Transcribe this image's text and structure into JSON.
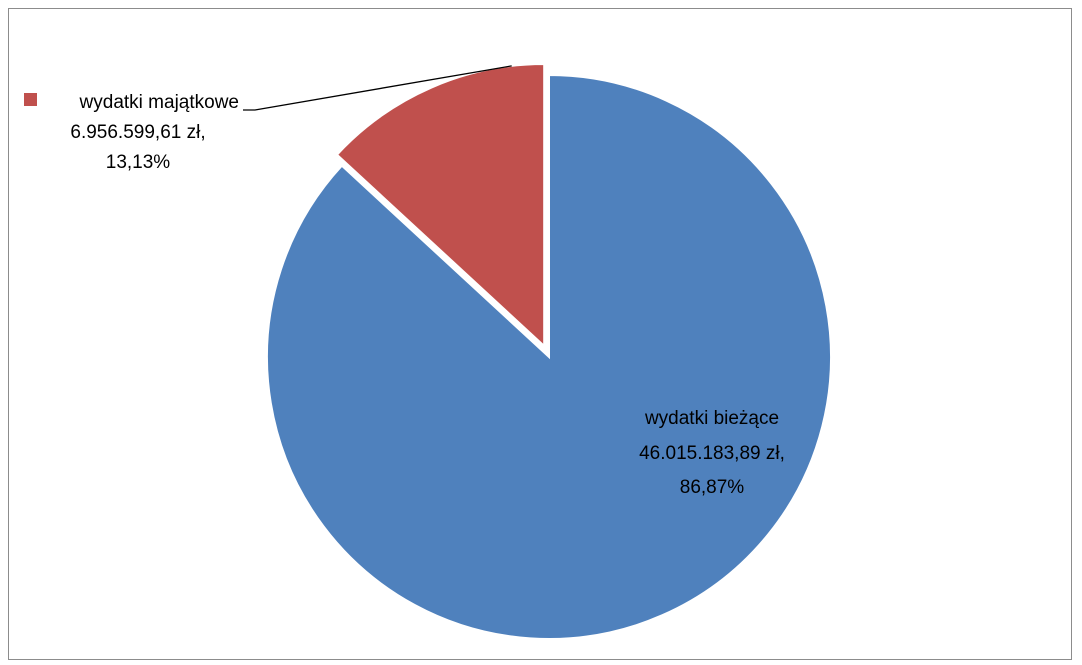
{
  "chart_data": {
    "type": "pie",
    "title": "",
    "slices": [
      {
        "label": "wydatki bieżące",
        "value": 46015183.89,
        "value_text": "46.015.183,89 zł,",
        "percent": 86.87,
        "percent_text": "86,87%",
        "color": "#4F81BD"
      },
      {
        "label": "wydatki majątkowe",
        "value": 6956599.61,
        "value_text": "6.956.599,61 zł,",
        "percent": 13.13,
        "percent_text": "13,13%",
        "color": "#C0504D",
        "exploded": true
      }
    ]
  }
}
